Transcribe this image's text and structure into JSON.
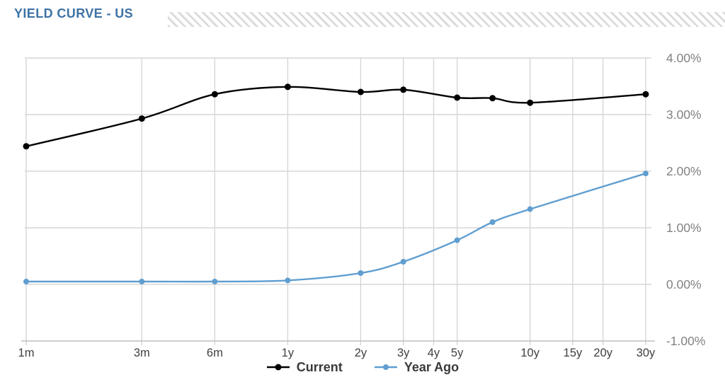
{
  "header": {
    "title": "YIELD CURVE - US"
  },
  "colors": {
    "title": "#3e73a5",
    "hatch": "#dcdcdc",
    "grid": "#d6d6d6",
    "axis": "#bdbdbd",
    "x_label": "#3f3f3f",
    "y_label": "#828282",
    "legend_text": "#3a3a3a",
    "current": "#000000",
    "year_ago": "#5f9ed1"
  },
  "chart_data": {
    "type": "line",
    "title": "YIELD CURVE - US",
    "x_scale": "log-months",
    "grid": true,
    "legend_position": "bottom-center",
    "ylim": [
      -1,
      4
    ],
    "y_ticks": [
      {
        "label": "4.00%",
        "value": 4
      },
      {
        "label": "3.00%",
        "value": 3
      },
      {
        "label": "2.00%",
        "value": 2
      },
      {
        "label": "1.00%",
        "value": 1
      },
      {
        "label": "0.00%",
        "value": 0
      },
      {
        "label": "-1.00%",
        "value": -1
      }
    ],
    "x_ticks": [
      {
        "label": "1m",
        "months": 1
      },
      {
        "label": "3m",
        "months": 3
      },
      {
        "label": "6m",
        "months": 6
      },
      {
        "label": "1y",
        "months": 12
      },
      {
        "label": "2y",
        "months": 24
      },
      {
        "label": "3y",
        "months": 36
      },
      {
        "label": "4y",
        "months": 48
      },
      {
        "label": "5y",
        "months": 60
      },
      {
        "label": "10y",
        "months": 120
      },
      {
        "label": "15y",
        "months": 180
      },
      {
        "label": "20y",
        "months": 240
      },
      {
        "label": "30y",
        "months": 360
      }
    ],
    "series": [
      {
        "name": "Current",
        "color": "#000000",
        "marker_radius": 4.5,
        "points": [
          {
            "maturity": "1m",
            "months": 1,
            "value": 2.44
          },
          {
            "maturity": "3m",
            "months": 3,
            "value": 2.93
          },
          {
            "maturity": "6m",
            "months": 6,
            "value": 3.36
          },
          {
            "maturity": "1y",
            "months": 12,
            "value": 3.49
          },
          {
            "maturity": "2y",
            "months": 24,
            "value": 3.4
          },
          {
            "maturity": "3y",
            "months": 36,
            "value": 3.44
          },
          {
            "maturity": "5y",
            "months": 60,
            "value": 3.3
          },
          {
            "maturity": "7y",
            "months": 84,
            "value": 3.29
          },
          {
            "maturity": "10y",
            "months": 120,
            "value": 3.21
          },
          {
            "maturity": "30y",
            "months": 360,
            "value": 3.36
          }
        ]
      },
      {
        "name": "Year Ago",
        "color": "#5f9ed1",
        "marker_radius": 4,
        "points": [
          {
            "maturity": "1m",
            "months": 1,
            "value": 0.05
          },
          {
            "maturity": "3m",
            "months": 3,
            "value": 0.05
          },
          {
            "maturity": "6m",
            "months": 6,
            "value": 0.05
          },
          {
            "maturity": "1y",
            "months": 12,
            "value": 0.07
          },
          {
            "maturity": "2y",
            "months": 24,
            "value": 0.2
          },
          {
            "maturity": "3y",
            "months": 36,
            "value": 0.4
          },
          {
            "maturity": "5y",
            "months": 60,
            "value": 0.78
          },
          {
            "maturity": "7y",
            "months": 84,
            "value": 1.1
          },
          {
            "maturity": "10y",
            "months": 120,
            "value": 1.33
          },
          {
            "maturity": "30y",
            "months": 360,
            "value": 1.96
          }
        ]
      }
    ]
  }
}
